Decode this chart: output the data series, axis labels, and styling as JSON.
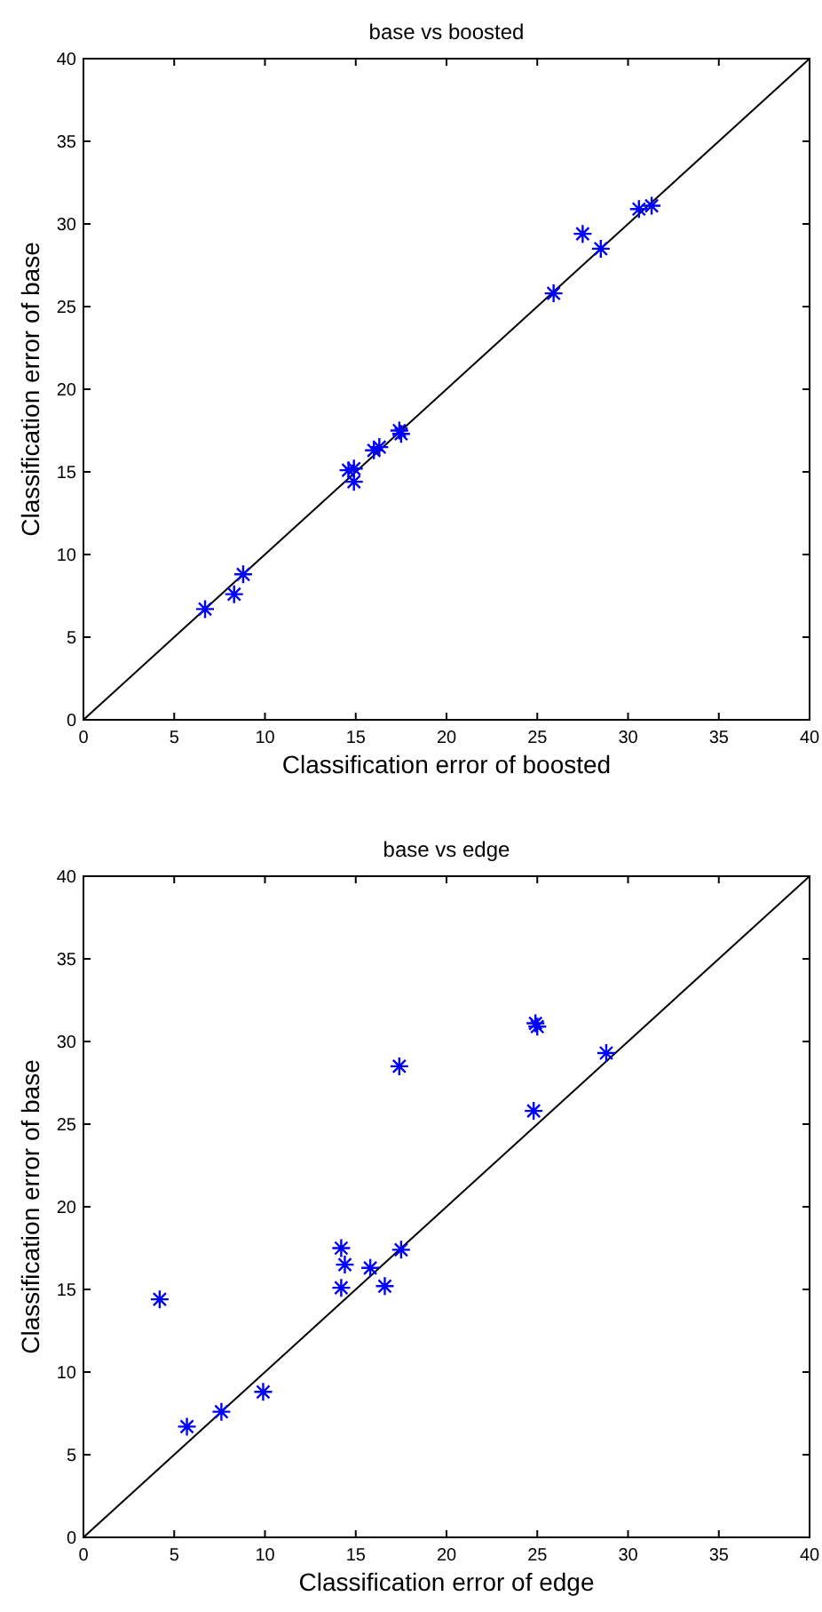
{
  "chart_data": [
    {
      "type": "scatter",
      "title": "base vs boosted",
      "xlabel": "Classification error of boosted",
      "ylabel": "Classification error of base",
      "xlim": [
        0,
        40
      ],
      "ylim": [
        0,
        40
      ],
      "xticks": [
        0,
        5,
        10,
        15,
        20,
        25,
        30,
        35,
        40
      ],
      "yticks": [
        0,
        5,
        10,
        15,
        20,
        25,
        30,
        35,
        40
      ],
      "grid": false,
      "marker": "cross",
      "series": [
        {
          "type": "line",
          "color": "#000000",
          "marker": "none",
          "x": [
            0,
            40
          ],
          "values": [
            0,
            40
          ]
        },
        {
          "color": "#0000ff",
          "x": [
            6.7,
            8.3,
            8.8,
            14.6,
            14.9,
            14.9,
            16,
            16.3,
            17.4,
            17.5,
            25.9,
            27.5,
            28.5,
            30.6,
            31.3
          ],
          "values": [
            6.7,
            7.6,
            8.8,
            15.1,
            15.2,
            14.4,
            16.3,
            16.5,
            17.5,
            17.3,
            25.8,
            29.4,
            28.5,
            30.9,
            31.1
          ]
        }
      ]
    },
    {
      "type": "scatter",
      "title": "base vs edge",
      "xlabel": "Classification error of edge",
      "ylabel": "Classification error of base",
      "xlim": [
        0,
        40
      ],
      "ylim": [
        0,
        40
      ],
      "xticks": [
        0,
        5,
        10,
        15,
        20,
        25,
        30,
        35,
        40
      ],
      "yticks": [
        0,
        5,
        10,
        15,
        20,
        25,
        30,
        35,
        40
      ],
      "grid": false,
      "marker": "cross",
      "series": [
        {
          "type": "line",
          "color": "#000000",
          "marker": "none",
          "x": [
            0,
            40
          ],
          "values": [
            0,
            40
          ]
        },
        {
          "color": "#0000ff",
          "x": [
            4.2,
            5.7,
            7.6,
            9.9,
            14.2,
            14.4,
            14.2,
            15.8,
            16.6,
            17.4,
            17.5,
            24.8,
            24.9,
            25,
            28.8
          ],
          "values": [
            14.4,
            6.7,
            7.6,
            8.8,
            17.5,
            16.5,
            15.1,
            16.3,
            15.2,
            28.5,
            17.4,
            25.8,
            31.1,
            30.9,
            29.3
          ]
        }
      ]
    }
  ]
}
